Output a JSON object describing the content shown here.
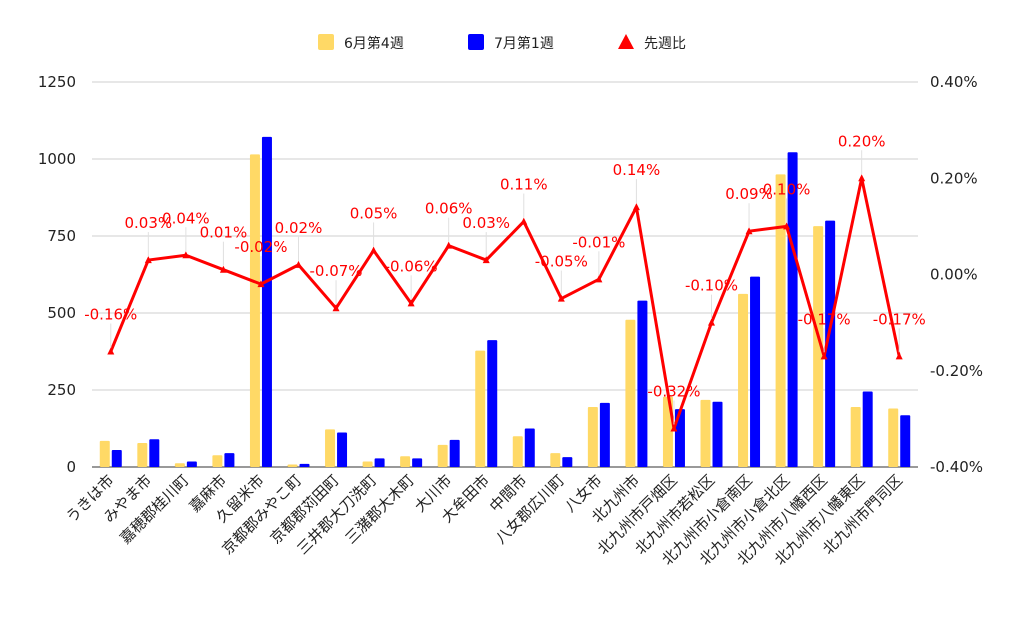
{
  "chart_data": {
    "type": "bar",
    "categories": [
      "うきは市",
      "みやま市",
      "嘉穂郡桂川町",
      "嘉麻市",
      "久留米市",
      "京都郡みやこ町",
      "京都郡苅田町",
      "三井郡大刀洗町",
      "三潴郡大木町",
      "大川市",
      "大牟田市",
      "中間市",
      "八女郡広川町",
      "八女市",
      "北九州市",
      "北九州市戸畑区",
      "北九州市若松区",
      "北九州市小倉南区",
      "北九州市小倉北区",
      "北九州市八幡西区",
      "北九州市八幡東区",
      "北九州市門司区"
    ],
    "series": [
      {
        "name": "6月第4週",
        "kind": "bar",
        "axis": "left",
        "color": "#ffd966",
        "values": [
          85,
          78,
          12,
          38,
          1015,
          8,
          122,
          18,
          35,
          72,
          378,
          100,
          45,
          195,
          478,
          228,
          218,
          562,
          950,
          782,
          195,
          190
        ]
      },
      {
        "name": "7月第1週",
        "kind": "bar",
        "axis": "left",
        "color": "#0000ff",
        "values": [
          55,
          90,
          18,
          45,
          1072,
          10,
          112,
          28,
          28,
          88,
          412,
          125,
          32,
          208,
          540,
          188,
          212,
          618,
          1022,
          800,
          245,
          168
        ]
      },
      {
        "name": "先週比",
        "kind": "line",
        "axis": "right",
        "color": "#ff0000",
        "marker": "triangle",
        "values": [
          -0.16,
          0.03,
          0.04,
          0.01,
          -0.02,
          0.02,
          -0.07,
          0.05,
          -0.06,
          0.06,
          0.03,
          0.11,
          -0.05,
          -0.01,
          0.14,
          -0.32,
          -0.1,
          0.09,
          0.1,
          -0.17,
          0.2,
          -0.17
        ],
        "labels": [
          "-0.16%",
          "0.03%",
          "0.04%",
          "0.01%",
          "-0.02%",
          "0.02%",
          "-0.07%",
          "0.05%",
          "-0.06%",
          "0.06%",
          "0.03%",
          "0.11%",
          "-0.05%",
          "-0.01%",
          "0.14%",
          "-0.32%",
          "-0.10%",
          "0.09%",
          "0.10%",
          "-0.17%",
          "0.20%",
          "-0.17%"
        ]
      }
    ],
    "yleft": {
      "ylim": [
        0,
        1250
      ],
      "ticks": [
        0,
        250,
        500,
        750,
        1000,
        1250
      ],
      "tick_labels": [
        "0",
        "250",
        "500",
        "750",
        "1000",
        "1250"
      ]
    },
    "yright": {
      "ylim": [
        -0.4,
        0.4
      ],
      "ticks": [
        -0.4,
        -0.2,
        0,
        0.2,
        0.4
      ],
      "tick_labels": [
        "-0.40%",
        "-0.20%",
        "0.00%",
        "0.20%",
        "0.40%"
      ]
    },
    "legend_position": "top-center",
    "grid": true,
    "title": "",
    "xlabel": "",
    "ylabel": ""
  }
}
